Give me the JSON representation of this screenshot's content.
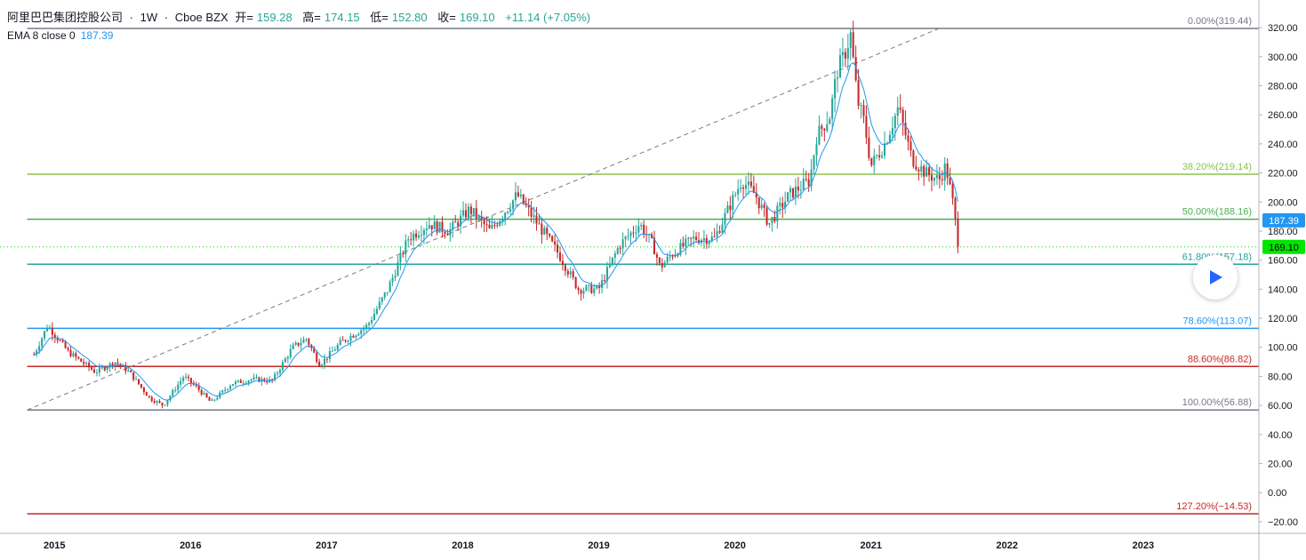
{
  "header": {
    "symbol": "阿里巴巴集团控股公司",
    "interval": "1W",
    "exchange": "Cboe BZX",
    "open_label": "开=",
    "open": "159.28",
    "high_label": "高=",
    "high": "174.15",
    "low_label": "低=",
    "low": "152.80",
    "close_label": "收=",
    "close": "169.10",
    "change": "+11.14 (+7.05%)"
  },
  "indicator": {
    "label": "EMA 8 close 0",
    "value": "187.39"
  },
  "colors": {
    "up": "#26a69a",
    "down": "#c62828",
    "ema": "#2196f3",
    "last_price": "#00e600",
    "ema_badge": "#2196f3"
  },
  "chart_data": {
    "type": "candlestick",
    "y_range": [
      -28,
      328
    ],
    "x_range": [
      2014.6,
      2023.85
    ],
    "y_ticks": [
      320,
      300,
      280,
      260,
      240,
      220,
      200,
      180,
      160,
      140,
      120,
      100,
      80,
      60,
      40,
      20,
      0,
      -20
    ],
    "y_tick_labels": [
      "320.00",
      "300.00",
      "280.00",
      "260.00",
      "240.00",
      "220.00",
      "200.00",
      "180.00",
      "160.00",
      "140.00",
      "120.00",
      "100.00",
      "80.00",
      "60.00",
      "40.00",
      "20.00",
      "0.00",
      "−20.00"
    ],
    "x_ticks": [
      2015,
      2016,
      2017,
      2018,
      2019,
      2020,
      2021,
      2022,
      2023
    ],
    "x_tick_labels": [
      "2015",
      "2016",
      "2017",
      "2018",
      "2019",
      "2020",
      "2021",
      "2022",
      "2023"
    ],
    "fib_levels": [
      {
        "price": 319.44,
        "label": "0.00%(319.44)",
        "color": "#787b86"
      },
      {
        "price": 219.14,
        "label": "38.20%(219.14)",
        "color": "#8bc34a"
      },
      {
        "price": 188.16,
        "label": "50.00%(188.16)",
        "color": "#4caf50"
      },
      {
        "price": 157.18,
        "label": "61.80%(157.18)",
        "color": "#26a69a"
      },
      {
        "price": 113.07,
        "label": "78.60%(113.07)",
        "color": "#2196f3"
      },
      {
        "price": 86.82,
        "label": "88.60%(86.82)",
        "color": "#c62828"
      },
      {
        "price": 56.88,
        "label": "100.00%(56.88)",
        "color": "#787b86"
      },
      {
        "price": -14.53,
        "label": "127.20%(−14.53)",
        "color": "#c62828"
      }
    ],
    "fib_start_x": 2014.8,
    "trend_line": {
      "x": [
        2014.8,
        2021.5
      ],
      "y": [
        56.88,
        319.44
      ]
    },
    "last_price": {
      "value": 169.1,
      "label": "169.10"
    },
    "ema_last": {
      "value": 187.39,
      "label": "187.39"
    },
    "price_path": [
      [
        2014.85,
        95
      ],
      [
        2014.95,
        115
      ],
      [
        2015.1,
        97
      ],
      [
        2015.3,
        83
      ],
      [
        2015.45,
        90
      ],
      [
        2015.55,
        83
      ],
      [
        2015.7,
        65
      ],
      [
        2015.8,
        60
      ],
      [
        2015.95,
        80
      ],
      [
        2016.05,
        72
      ],
      [
        2016.15,
        62
      ],
      [
        2016.3,
        75
      ],
      [
        2016.45,
        78
      ],
      [
        2016.6,
        77
      ],
      [
        2016.75,
        100
      ],
      [
        2016.85,
        106
      ],
      [
        2016.95,
        88
      ],
      [
        2017.1,
        103
      ],
      [
        2017.3,
        115
      ],
      [
        2017.45,
        140
      ],
      [
        2017.6,
        175
      ],
      [
        2017.75,
        185
      ],
      [
        2017.9,
        180
      ],
      [
        2018.05,
        195
      ],
      [
        2018.2,
        180
      ],
      [
        2018.4,
        205
      ],
      [
        2018.55,
        185
      ],
      [
        2018.7,
        165
      ],
      [
        2018.85,
        140
      ],
      [
        2019.0,
        140
      ],
      [
        2019.15,
        170
      ],
      [
        2019.3,
        185
      ],
      [
        2019.4,
        170
      ],
      [
        2019.45,
        155
      ],
      [
        2019.55,
        165
      ],
      [
        2019.7,
        175
      ],
      [
        2019.85,
        175
      ],
      [
        2019.95,
        195
      ],
      [
        2020.05,
        215
      ],
      [
        2020.15,
        205
      ],
      [
        2020.25,
        185
      ],
      [
        2020.4,
        205
      ],
      [
        2020.55,
        215
      ],
      [
        2020.6,
        245
      ],
      [
        2020.7,
        260
      ],
      [
        2020.75,
        290
      ],
      [
        2020.8,
        300
      ],
      [
        2020.85,
        315
      ],
      [
        2020.9,
        270
      ],
      [
        2020.95,
        255
      ],
      [
        2021.0,
        225
      ],
      [
        2021.1,
        240
      ],
      [
        2021.2,
        265
      ],
      [
        2021.3,
        230
      ],
      [
        2021.4,
        220
      ],
      [
        2021.5,
        215
      ],
      [
        2021.55,
        225
      ],
      [
        2021.6,
        200
      ],
      [
        2021.65,
        165
      ]
    ]
  }
}
